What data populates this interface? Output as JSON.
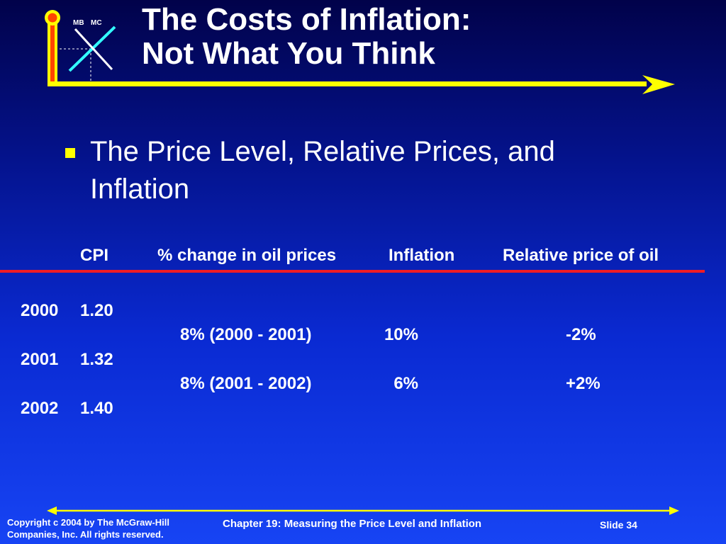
{
  "logo": {
    "labels": [
      "MB",
      "MC"
    ],
    "icons": [
      "thermometer-axis-icon",
      "marginal-cost-benefit-cross-icon",
      "arrow-right-icon"
    ]
  },
  "title": {
    "line1": "The Costs of Inflation:",
    "line2": "Not What You Think"
  },
  "bullet": {
    "line1": "The Price Level, Relative Prices, and",
    "line2": "Inflation"
  },
  "table": {
    "headers": [
      "CPI",
      "% change in oil prices",
      "Inflation",
      "Relative price of oil"
    ],
    "year_rows": [
      {
        "year": "2000",
        "cpi": "1.20"
      },
      {
        "year": "2001",
        "cpi": "1.32"
      },
      {
        "year": "2002",
        "cpi": "1.40"
      }
    ],
    "change_rows": [
      {
        "oil": "8% (2000 - 2001)",
        "inflation": "10%",
        "relative": "-2%"
      },
      {
        "oil": "8% (2001 - 2002)",
        "inflation": "6%",
        "relative": "+2%"
      }
    ]
  },
  "footer": {
    "copyright_line1": "Copyright c 2004 by The McGraw-Hill",
    "copyright_line2": "Companies, Inc.  All rights reserved.",
    "chapter": "Chapter 19: Measuring the Price Level and Inflation",
    "slide": "Slide 34"
  },
  "colors": {
    "accent_yellow": "#ffff00",
    "rule_red": "#ee1c24",
    "logo_cyan": "#33ffff",
    "logo_orange": "#ff4500"
  }
}
